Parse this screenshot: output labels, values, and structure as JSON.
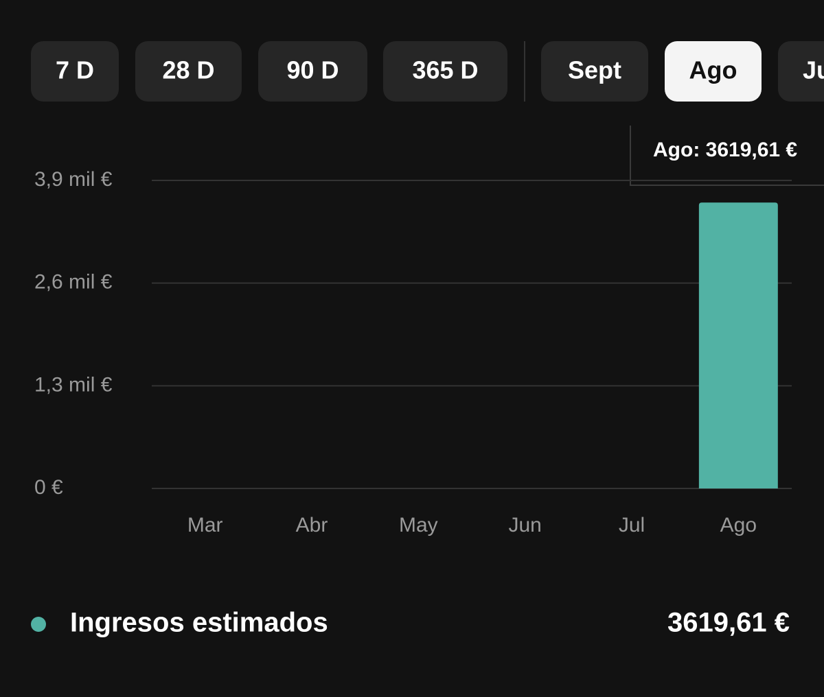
{
  "filters": [
    "7 D",
    "28 D",
    "90 D",
    "365 D"
  ],
  "months": [
    {
      "label": "Sept",
      "selected": false
    },
    {
      "label": "Ago",
      "selected": true
    },
    {
      "label": "Ju",
      "selected": false
    }
  ],
  "chart_data": {
    "type": "bar",
    "categories": [
      "Mar",
      "Abr",
      "May",
      "Jun",
      "Jul",
      "Ago"
    ],
    "series": [
      {
        "name": "Ingresos estimados",
        "color": "#52b2a4",
        "values": [
          0,
          0,
          0,
          0,
          0,
          3619.61
        ]
      }
    ],
    "ylim": [
      0,
      3900
    ],
    "yticks": [
      {
        "value": 0,
        "label": "0 €"
      },
      {
        "value": 1300,
        "label": "1,3 mil €"
      },
      {
        "value": 2600,
        "label": "2,6 mil €"
      },
      {
        "value": 3900,
        "label": "3,9 mil €"
      }
    ],
    "grid": true,
    "tooltip": "Ago: 3619,61 €",
    "total_label": "3619,61 €"
  }
}
